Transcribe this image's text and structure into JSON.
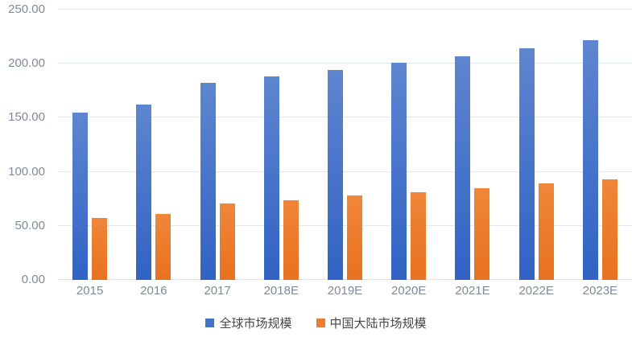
{
  "chart_data": {
    "type": "bar",
    "title": "",
    "xlabel": "",
    "ylabel": "",
    "categories": [
      "2015",
      "2016",
      "2017",
      "2018E",
      "2019E",
      "2020E",
      "2021E",
      "2022E",
      "2023E"
    ],
    "series": [
      {
        "name": "全球市场规模",
        "values": [
          155,
          162,
          182,
          188,
          194,
          201,
          207,
          214,
          222
        ],
        "legend_color": "#4472C4",
        "fill_top": "#5e86d0",
        "fill_bottom": "#3162c4"
      },
      {
        "name": "中国大陆市场规模",
        "values": [
          57,
          61,
          71,
          74,
          78,
          81,
          85,
          89,
          93
        ],
        "legend_color": "#ED7D31",
        "fill_top": "#f0863a",
        "fill_bottom": "#e8711f"
      }
    ],
    "ylim": [
      0,
      250
    ],
    "ytick_interval": 50,
    "yticks": [
      {
        "value": 0,
        "label": "0.00"
      },
      {
        "value": 50,
        "label": "50.00"
      },
      {
        "value": 100,
        "label": "100.00"
      },
      {
        "value": 150,
        "label": "150.00"
      },
      {
        "value": 200,
        "label": "200.00"
      },
      {
        "value": 250,
        "label": "250.00"
      }
    ],
    "grid": true,
    "legend_position": "bottom",
    "axis_text_color": "#7f8a99",
    "legend_text_color": "#474747",
    "gridline_color": "#e1e7ee",
    "background_color": "#ffffff"
  }
}
